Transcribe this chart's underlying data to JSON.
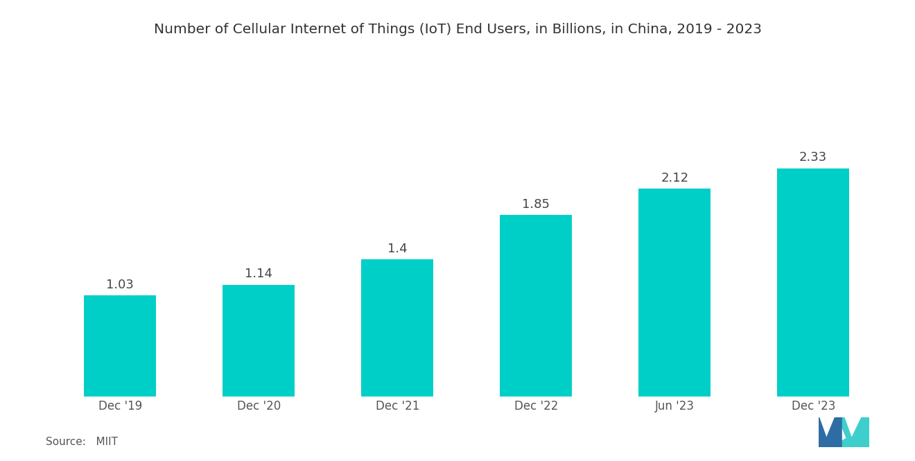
{
  "title": "Number of Cellular Internet of Things (IoT) End Users, in Billions, in China, 2019 - 2023",
  "categories": [
    "Dec '19",
    "Dec '20",
    "Dec '21",
    "Dec '22",
    "Jun '23",
    "Dec '23"
  ],
  "values": [
    1.03,
    1.14,
    1.4,
    1.85,
    2.12,
    2.33
  ],
  "bar_color": "#00CFC8",
  "background_color": "#FFFFFF",
  "title_fontsize": 14.5,
  "label_fontsize": 13,
  "tick_fontsize": 12,
  "source_text": "Source:   MIIT",
  "ylim": [
    0,
    3.2
  ],
  "bar_width": 0.52
}
